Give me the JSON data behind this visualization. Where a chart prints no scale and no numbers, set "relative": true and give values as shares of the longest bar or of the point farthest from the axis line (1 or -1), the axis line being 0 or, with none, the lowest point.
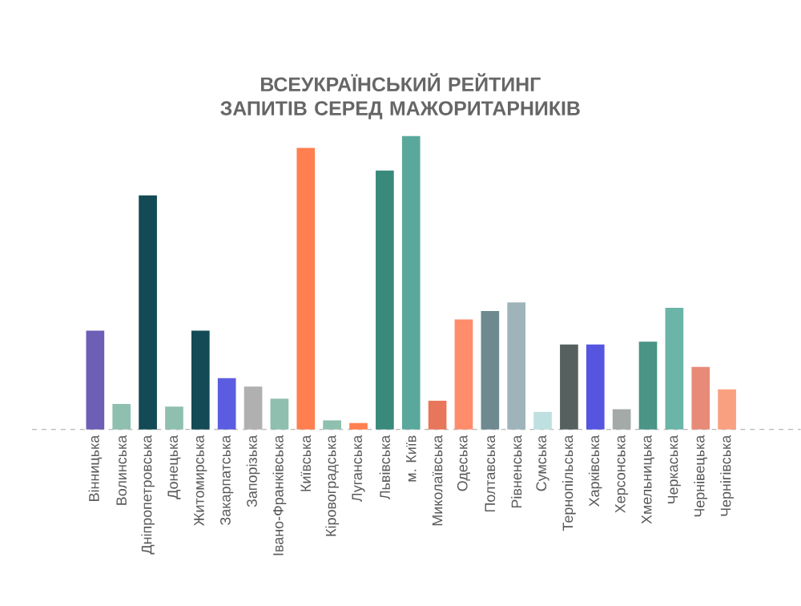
{
  "chart_data": {
    "type": "bar",
    "title": "ВСЕУКРАЇНСЬКИЙ РЕЙТИНГ ЗАПИТІВ СЕРЕД МАЖОРИТАРНИКІВ",
    "relative": true,
    "categories": [
      "Вінницька",
      "Волинська",
      "Дніпропетровська",
      "Донецька",
      "Житомирська",
      "Закарпатська",
      "Запорізька",
      "Івано-Франківська",
      "Київська",
      "Кіровоградська",
      "Луганська",
      "Львівська",
      "м. Київ",
      "Миколаївська",
      "Одеська",
      "Полтавська",
      "Рівненська",
      "Сумська",
      "Тернопільська",
      "Харківська",
      "Херсонська",
      "Хмельницька",
      "Черкаська",
      "Чернівецька",
      "Чернігівська"
    ],
    "values": [
      0.337,
      0.087,
      0.798,
      0.078,
      0.337,
      0.175,
      0.146,
      0.105,
      0.96,
      0.031,
      0.022,
      0.883,
      1,
      0.098,
      0.375,
      0.404,
      0.433,
      0.06,
      0.29,
      0.29,
      0.069,
      0.299,
      0.415,
      0.213,
      0.137
    ],
    "colors": [
      "#6d5fb5",
      "#8fbfae",
      "#134a55",
      "#8fbfae",
      "#134a55",
      "#5c5ce0",
      "#b0b0b0",
      "#8fbfae",
      "#ff7f50",
      "#8fbfae",
      "#ff7f50",
      "#3a8a7c",
      "#5aa89c",
      "#e8765a",
      "#ff8c6b",
      "#6e8a90",
      "#9fb4ba",
      "#bfe0e0",
      "#56615f",
      "#5555e0",
      "#a4aaa8",
      "#4a9585",
      "#6ab4a8",
      "#e88a78",
      "#f9a080"
    ]
  }
}
